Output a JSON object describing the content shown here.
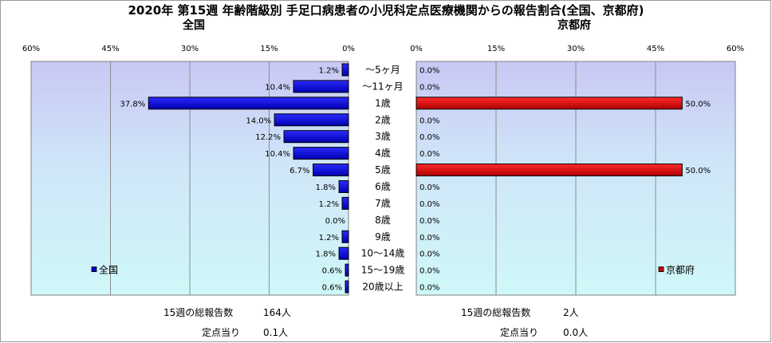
{
  "title": "2020年 第15週 年齢階級別 手足口病患者の小児科定点医療機関からの報告割合(全国、京都府)",
  "colors": {
    "national": "#0000cc",
    "kyoto": "#cc0000"
  },
  "chart_data": {
    "type": "bar",
    "orientation": "horizontal",
    "categories": [
      "～5ヶ月",
      "～11ヶ月",
      "1歳",
      "2歳",
      "3歳",
      "4歳",
      "5歳",
      "6歳",
      "7歳",
      "8歳",
      "9歳",
      "10～14歳",
      "15～19歳",
      "20歳以上"
    ],
    "panels": [
      {
        "title": "全国",
        "legend": "全国",
        "legend_position": "bottom-left",
        "direction": "right-to-left",
        "xlim": [
          0,
          60
        ],
        "ticks": [
          "60%",
          "45%",
          "30%",
          "15%",
          "0%"
        ],
        "tick_values": [
          60,
          45,
          30,
          15,
          0
        ],
        "values": [
          1.2,
          10.4,
          37.8,
          14.0,
          12.2,
          10.4,
          6.7,
          1.8,
          1.2,
          0.0,
          1.2,
          1.8,
          0.6,
          0.6
        ],
        "value_labels": [
          "1.2%",
          "10.4%",
          "37.8%",
          "14.0%",
          "12.2%",
          "10.4%",
          "6.7%",
          "1.8%",
          "1.2%",
          "0.0%",
          "1.2%",
          "1.8%",
          "0.6%",
          "0.6%"
        ]
      },
      {
        "title": "京都府",
        "legend": "京都府",
        "legend_position": "bottom-right",
        "direction": "left-to-right",
        "xlim": [
          0,
          60
        ],
        "ticks": [
          "0%",
          "15%",
          "30%",
          "45%",
          "60%"
        ],
        "tick_values": [
          0,
          15,
          30,
          45,
          60
        ],
        "values": [
          0.0,
          0.0,
          50.0,
          0.0,
          0.0,
          0.0,
          50.0,
          0.0,
          0.0,
          0.0,
          0.0,
          0.0,
          0.0,
          0.0
        ],
        "value_labels": [
          "0.0%",
          "0.0%",
          "50.0%",
          "0.0%",
          "0.0%",
          "0.0%",
          "50.0%",
          "0.0%",
          "0.0%",
          "0.0%",
          "0.0%",
          "0.0%",
          "0.0%",
          "0.0%"
        ]
      }
    ]
  },
  "footer": {
    "national": {
      "total_label": "15週の総報告数",
      "total_value": "164人",
      "per_label": "定点当り",
      "per_value": "0.1人"
    },
    "kyoto": {
      "total_label": "15週の総報告数",
      "total_value": "2人",
      "per_label": "定点当り",
      "per_value": "0.0人"
    }
  }
}
